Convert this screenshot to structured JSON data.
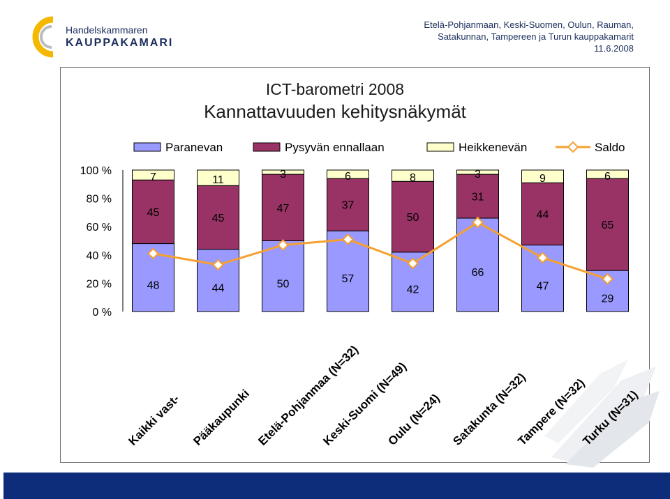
{
  "header": {
    "logo_line1": "Handelskammaren",
    "logo_line2": "KAUPPAKAMARI",
    "info_line1": "Etelä-Pohjanmaan, Keski-Suomen, Oulun, Rauman,",
    "info_line2": "Satakunnan, Tampereen ja Turun kauppakamarit",
    "date": "11.6.2008"
  },
  "colors": {
    "paranevan": "#9999ff",
    "pysyvan": "#993366",
    "heikkenevan": "#ffffcc",
    "saldo": "#f5a030",
    "footer": "#0d2c7a",
    "accent": "#f5b800"
  },
  "chart_data": {
    "type": "bar",
    "stacked": true,
    "title": "ICT-barometri 2008",
    "subtitle": "Kannattavuuden kehitysnäkymät",
    "categories": [
      "Kaikki vast-",
      "Pääkaupunki",
      "Etelä-Pohjanmaa (N=32)",
      "Keski-Suomi (N=49)",
      "Oulu (N=24)",
      "Satakunta (N=32)",
      "Tampere (N=32)",
      "Turku (N=31)"
    ],
    "series": [
      {
        "name": "Paranevan",
        "values": [
          48,
          44,
          50,
          57,
          42,
          66,
          47,
          29
        ]
      },
      {
        "name": "Pysyvän ennallaan",
        "values": [
          45,
          45,
          47,
          37,
          50,
          31,
          44,
          65
        ]
      },
      {
        "name": "Heikkenevän",
        "values": [
          7,
          11,
          3,
          6,
          8,
          3,
          9,
          6
        ]
      },
      {
        "name": "Saldo",
        "type": "line",
        "values": [
          41,
          33,
          47,
          51,
          34,
          63,
          38,
          23
        ]
      }
    ],
    "yticks": [
      "0 %",
      "20 %",
      "40 %",
      "60 %",
      "80 %",
      "100 %"
    ],
    "ylim": [
      0,
      100
    ],
    "legend": "top"
  }
}
